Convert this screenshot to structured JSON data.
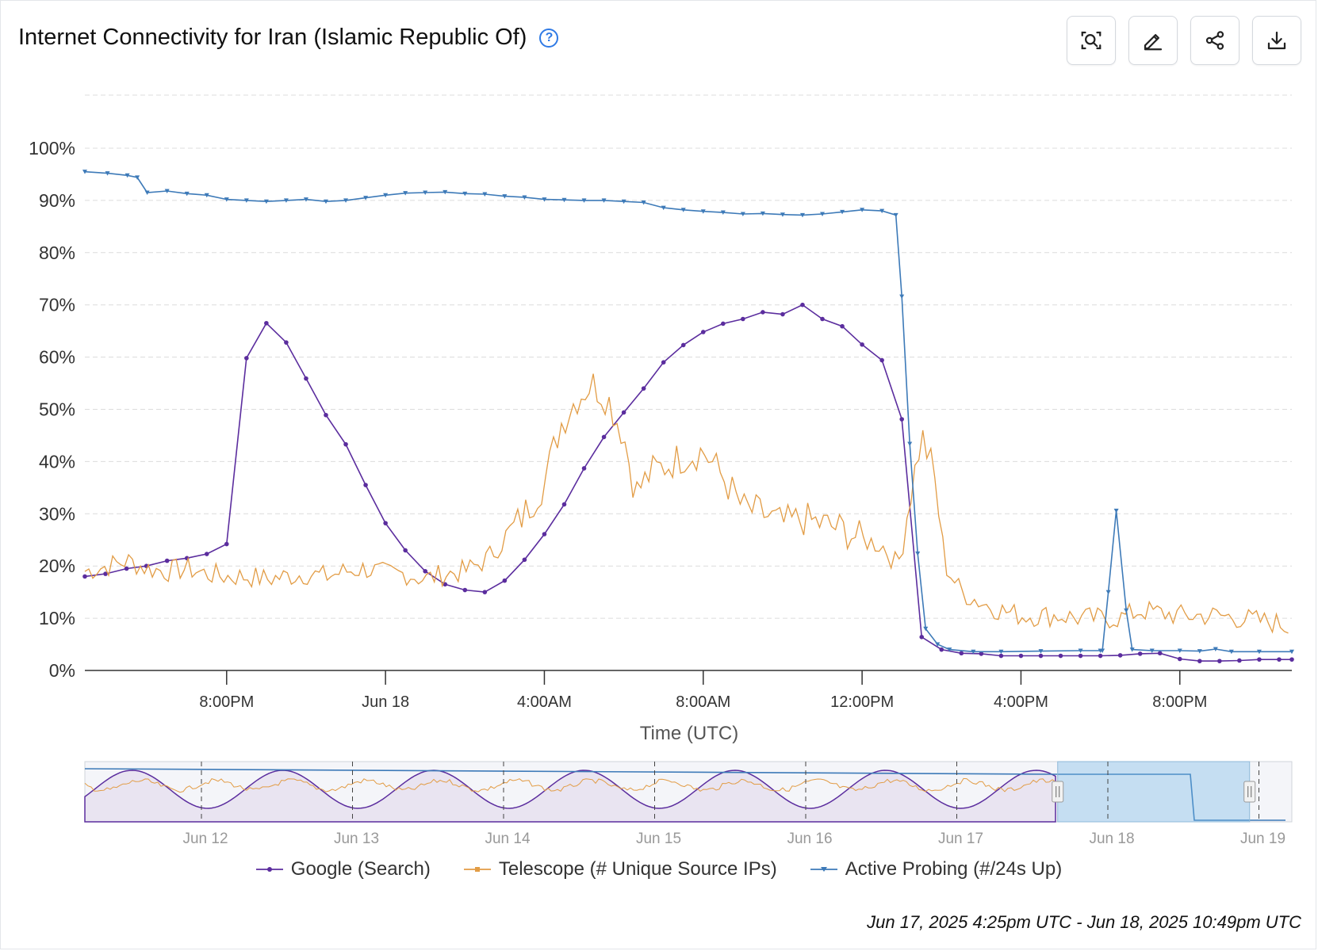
{
  "header": {
    "title": "Internet Connectivity for Iran (Islamic Republic Of)",
    "help_icon": "question-circle-icon",
    "toolbar": [
      {
        "name": "zoom-button",
        "icon": "zoom-search-icon"
      },
      {
        "name": "edit-button",
        "icon": "pencil-icon"
      },
      {
        "name": "share-button",
        "icon": "share-icon"
      },
      {
        "name": "download-button",
        "icon": "download-icon"
      }
    ]
  },
  "chart_data": {
    "type": "line",
    "xlabel": "Time (UTC)",
    "ylabel": "",
    "ylim": [
      0,
      100
    ],
    "y_ticks": [
      "0%",
      "10%",
      "20%",
      "30%",
      "40%",
      "50%",
      "60%",
      "70%",
      "80%",
      "90%",
      "100%"
    ],
    "x_range_hours": [
      "Jun 17 16:25",
      "Jun 18 22:49"
    ],
    "x_ticks": [
      {
        "label": "8:00PM",
        "hour": 20
      },
      {
        "label": "Jun 18",
        "hour": 24
      },
      {
        "label": "4:00AM",
        "hour": 28
      },
      {
        "label": "8:00AM",
        "hour": 32
      },
      {
        "label": "12:00PM",
        "hour": 36
      },
      {
        "label": "4:00PM",
        "hour": 40
      },
      {
        "label": "8:00PM",
        "hour": 44
      }
    ],
    "grid": true,
    "legend_position": "bottom",
    "series": [
      {
        "name": "Google (Search)",
        "color": "#5b2d9e",
        "marker": "circle",
        "points": [
          [
            16.43,
            18
          ],
          [
            16.95,
            18.5
          ],
          [
            17.48,
            19.5
          ],
          [
            17.98,
            20
          ],
          [
            18.5,
            21
          ],
          [
            19.0,
            21.5
          ],
          [
            19.5,
            22.3
          ],
          [
            20.0,
            24.2
          ],
          [
            20.5,
            59.8
          ],
          [
            21.0,
            66.5
          ],
          [
            21.5,
            62.8
          ],
          [
            22.0,
            55.9
          ],
          [
            22.5,
            48.9
          ],
          [
            23.0,
            43.3
          ],
          [
            23.5,
            35.5
          ],
          [
            24.0,
            28.2
          ],
          [
            24.5,
            23
          ],
          [
            25.0,
            19
          ],
          [
            25.5,
            16.5
          ],
          [
            26.0,
            15.4
          ],
          [
            26.5,
            15
          ],
          [
            27.0,
            17.2
          ],
          [
            27.5,
            21.2
          ],
          [
            28.0,
            26.1
          ],
          [
            28.5,
            31.8
          ],
          [
            29.0,
            38.7
          ],
          [
            29.5,
            44.7
          ],
          [
            30.0,
            49.4
          ],
          [
            30.5,
            54
          ],
          [
            31.0,
            59
          ],
          [
            31.5,
            62.3
          ],
          [
            32.0,
            64.8
          ],
          [
            32.5,
            66.4
          ],
          [
            33.0,
            67.3
          ],
          [
            33.5,
            68.6
          ],
          [
            34.0,
            68.2
          ],
          [
            34.5,
            70
          ],
          [
            35.0,
            67.3
          ],
          [
            35.5,
            65.9
          ],
          [
            36.0,
            62.4
          ],
          [
            36.5,
            59.4
          ],
          [
            37.0,
            48.1
          ],
          [
            37.5,
            6.4
          ],
          [
            38.0,
            4
          ],
          [
            38.5,
            3.3
          ],
          [
            39.0,
            3.2
          ],
          [
            39.5,
            2.8
          ],
          [
            40.0,
            2.8
          ],
          [
            40.5,
            2.8
          ],
          [
            41.0,
            2.8
          ],
          [
            41.5,
            2.8
          ],
          [
            42.0,
            2.8
          ],
          [
            42.5,
            2.9
          ],
          [
            43.0,
            3.2
          ],
          [
            43.5,
            3.3
          ],
          [
            44.0,
            2.2
          ],
          [
            44.5,
            1.8
          ],
          [
            45.0,
            1.8
          ],
          [
            45.5,
            1.9
          ],
          [
            46.0,
            2.1
          ],
          [
            46.5,
            2.1
          ],
          [
            46.82,
            2.1
          ]
        ]
      },
      {
        "name": "Telescope (# Unique Source IPs)",
        "color": "#e29c45",
        "marker": "square",
        "points": [
          [
            16.43,
            19
          ],
          [
            17.0,
            20
          ],
          [
            17.5,
            21
          ],
          [
            18.0,
            19.5
          ],
          [
            18.5,
            19
          ],
          [
            19.0,
            19.5
          ],
          [
            19.5,
            18.5
          ],
          [
            20.0,
            18
          ],
          [
            20.5,
            18
          ],
          [
            21.0,
            17.5
          ],
          [
            21.5,
            18
          ],
          [
            22.0,
            18.5
          ],
          [
            22.5,
            18
          ],
          [
            23.0,
            19
          ],
          [
            23.5,
            19.5
          ],
          [
            24.0,
            18.5
          ],
          [
            24.5,
            18.5
          ],
          [
            25.0,
            17.5
          ],
          [
            25.5,
            18.5
          ],
          [
            26.0,
            19
          ],
          [
            26.5,
            21
          ],
          [
            27.0,
            25
          ],
          [
            27.5,
            30
          ],
          [
            28.0,
            36
          ],
          [
            28.4,
            47
          ],
          [
            28.8,
            52
          ],
          [
            29.2,
            55
          ],
          [
            29.6,
            52
          ],
          [
            30.0,
            45
          ],
          [
            30.3,
            34
          ],
          [
            30.7,
            38
          ],
          [
            31.0,
            39
          ],
          [
            31.5,
            41
          ],
          [
            32.0,
            42
          ],
          [
            32.5,
            37
          ],
          [
            33.0,
            31
          ],
          [
            33.5,
            30
          ],
          [
            34.0,
            28
          ],
          [
            34.5,
            29
          ],
          [
            35.0,
            28
          ],
          [
            35.5,
            27
          ],
          [
            36.0,
            25
          ],
          [
            36.5,
            24
          ],
          [
            36.9,
            20
          ],
          [
            37.2,
            33
          ],
          [
            37.5,
            45
          ],
          [
            37.8,
            38
          ],
          [
            38.1,
            20
          ],
          [
            38.5,
            15
          ],
          [
            39.0,
            13
          ],
          [
            39.5,
            11.5
          ],
          [
            40.0,
            10.5
          ],
          [
            40.5,
            10.5
          ],
          [
            41.0,
            10.5
          ],
          [
            41.5,
            10
          ],
          [
            42.0,
            10
          ],
          [
            42.5,
            10
          ],
          [
            43.0,
            11.5
          ],
          [
            43.5,
            11
          ],
          [
            44.0,
            10.5
          ],
          [
            44.5,
            10.5
          ],
          [
            45.0,
            10.5
          ],
          [
            45.5,
            10
          ],
          [
            46.0,
            9.5
          ],
          [
            46.5,
            9
          ],
          [
            46.82,
            8
          ]
        ],
        "noise": 2.2
      },
      {
        "name": "Active Probing (#/24s Up)",
        "color": "#3d7ab8",
        "marker": "triangle-down",
        "points": [
          [
            16.43,
            95.5
          ],
          [
            17.0,
            95.2
          ],
          [
            17.5,
            94.8
          ],
          [
            17.75,
            94.4
          ],
          [
            18.0,
            91.5
          ],
          [
            18.5,
            91.8
          ],
          [
            19.0,
            91.3
          ],
          [
            19.5,
            91
          ],
          [
            20.0,
            90.2
          ],
          [
            20.5,
            90
          ],
          [
            21.0,
            89.8
          ],
          [
            21.5,
            90
          ],
          [
            22.0,
            90.2
          ],
          [
            22.5,
            89.8
          ],
          [
            23.0,
            90
          ],
          [
            23.5,
            90.5
          ],
          [
            24.0,
            91
          ],
          [
            24.5,
            91.4
          ],
          [
            25.0,
            91.5
          ],
          [
            25.5,
            91.6
          ],
          [
            26.0,
            91.3
          ],
          [
            26.5,
            91.2
          ],
          [
            27.0,
            90.8
          ],
          [
            27.5,
            90.6
          ],
          [
            28.0,
            90.2
          ],
          [
            28.5,
            90.1
          ],
          [
            29.0,
            90
          ],
          [
            29.5,
            90
          ],
          [
            30.0,
            89.8
          ],
          [
            30.5,
            89.6
          ],
          [
            31.0,
            88.6
          ],
          [
            31.5,
            88.2
          ],
          [
            32.0,
            87.9
          ],
          [
            32.5,
            87.7
          ],
          [
            33.0,
            87.4
          ],
          [
            33.5,
            87.5
          ],
          [
            34.0,
            87.3
          ],
          [
            34.5,
            87.2
          ],
          [
            35.0,
            87.4
          ],
          [
            35.5,
            87.8
          ],
          [
            36.0,
            88.2
          ],
          [
            36.5,
            88
          ],
          [
            36.85,
            87.2
          ],
          [
            37.0,
            71.6
          ],
          [
            37.2,
            43.4
          ],
          [
            37.4,
            22.4
          ],
          [
            37.6,
            8
          ],
          [
            37.9,
            5
          ],
          [
            38.2,
            4
          ],
          [
            38.8,
            3.6
          ],
          [
            39.5,
            3.6
          ],
          [
            40.5,
            3.7
          ],
          [
            41.5,
            3.8
          ],
          [
            42.0,
            3.8
          ],
          [
            42.05,
            3.8
          ],
          [
            42.2,
            15
          ],
          [
            42.4,
            30.6
          ],
          [
            42.65,
            11.5
          ],
          [
            42.8,
            4
          ],
          [
            43.3,
            3.8
          ],
          [
            44.0,
            3.8
          ],
          [
            44.5,
            3.7
          ],
          [
            44.9,
            4.1
          ],
          [
            45.3,
            3.6
          ],
          [
            46.0,
            3.6
          ],
          [
            46.82,
            3.6
          ]
        ]
      }
    ]
  },
  "navigator": {
    "tick_labels": [
      "Jun 12",
      "Jun 13",
      "Jun 14",
      "Jun 15",
      "Jun 16",
      "Jun 17",
      "Jun 18",
      "Jun 19"
    ],
    "window_start_fraction": 0.806,
    "window_end_fraction": 0.965
  },
  "legend": [
    {
      "label": "Google (Search)",
      "color": "#5b2d9e",
      "marker": "circle"
    },
    {
      "label": "Telescope (# Unique Source IPs)",
      "color": "#e29c45",
      "marker": "square"
    },
    {
      "label": "Active Probing (#/24s Up)",
      "color": "#3d7ab8",
      "marker": "triangle-down"
    }
  ],
  "footer": {
    "range_text": "Jun 17, 2025 4:25pm UTC - Jun 18, 2025 10:49pm UTC"
  }
}
